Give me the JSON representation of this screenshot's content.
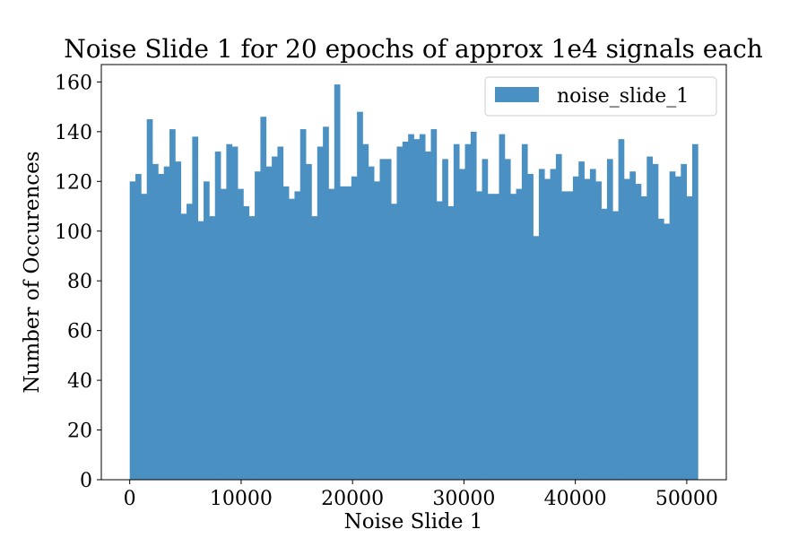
{
  "chart_data": {
    "type": "bar",
    "title": "Noise Slide 1 for 20 epochs of approx 1e4 signals each",
    "xlabel": "Noise Slide 1",
    "ylabel": "Number of Occurences",
    "xlim": [
      -2550,
      53550
    ],
    "ylim": [
      0,
      167
    ],
    "xticks": [
      0,
      10000,
      20000,
      30000,
      40000,
      50000
    ],
    "xtick_labels": [
      "0",
      "10000",
      "20000",
      "30000",
      "40000",
      "50000"
    ],
    "yticks": [
      0,
      20,
      40,
      60,
      80,
      100,
      120,
      140,
      160
    ],
    "ytick_labels": [
      "0",
      "20",
      "40",
      "60",
      "80",
      "100",
      "120",
      "140",
      "160"
    ],
    "bin_start": 0,
    "bin_width": 510,
    "series": [
      {
        "name": "noise_slide_1",
        "color": "#4a90c2",
        "values": [
          120,
          123,
          115,
          145,
          127,
          123,
          126,
          141,
          128,
          107,
          111,
          138,
          104,
          120,
          106,
          132,
          117,
          135,
          134,
          117,
          110,
          106,
          124,
          146,
          126,
          130,
          134,
          118,
          113,
          116,
          141,
          127,
          106,
          134,
          142,
          117,
          159,
          118,
          118,
          122,
          148,
          135,
          126,
          120,
          129,
          129,
          111,
          134,
          136,
          139,
          137,
          139,
          132,
          141,
          112,
          129,
          110,
          135,
          125,
          135,
          140,
          116,
          129,
          115,
          115,
          139,
          129,
          115,
          117,
          135,
          123,
          98,
          125,
          121,
          125,
          131,
          116,
          116,
          122,
          128,
          121,
          125,
          120,
          109,
          129,
          108,
          137,
          121,
          124,
          119,
          114,
          130,
          127,
          105,
          103,
          124,
          122,
          127,
          114,
          135
        ]
      }
    ],
    "legend_position": "upper right",
    "grid": false
  }
}
